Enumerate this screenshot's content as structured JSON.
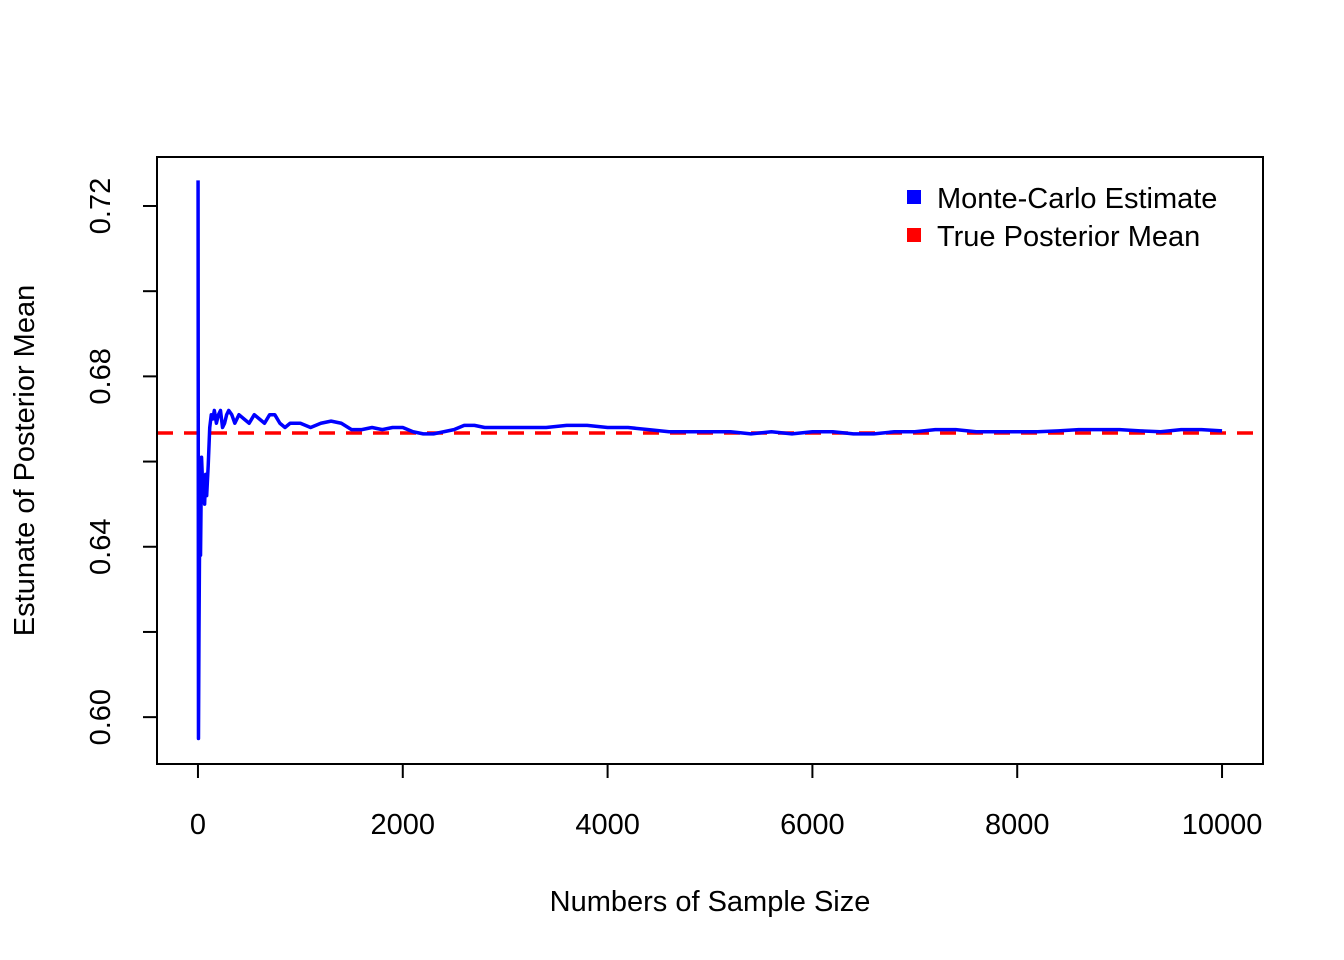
{
  "chart_data": {
    "type": "line",
    "title": "",
    "xlabel": "Numbers of Sample Size",
    "ylabel": "Estunate of Posterior Mean",
    "xlim": [
      -400,
      10400
    ],
    "ylim": [
      0.589,
      0.7315
    ],
    "xticks": [
      0,
      2000,
      4000,
      6000,
      8000,
      10000
    ],
    "xtick_labels": [
      "0",
      "2000",
      "4000",
      "6000",
      "8000",
      "10000"
    ],
    "yticks": [
      0.6,
      0.62,
      0.64,
      0.66,
      0.68,
      0.7,
      0.72
    ],
    "ytick_labels": [
      "0.60",
      "",
      "0.64",
      "",
      "0.68",
      "",
      "0.72"
    ],
    "grid": false,
    "legend_position": "top-right",
    "series": [
      {
        "name": "Monte-Carlo Estimate",
        "color": "#0000ff",
        "style": "solid",
        "x": [
          1,
          5,
          10,
          18,
          25,
          35,
          45,
          55,
          65,
          75,
          85,
          100,
          115,
          130,
          145,
          160,
          180,
          200,
          220,
          240,
          260,
          280,
          300,
          330,
          360,
          400,
          450,
          500,
          550,
          600,
          650,
          700,
          750,
          800,
          850,
          900,
          1000,
          1100,
          1200,
          1300,
          1400,
          1500,
          1600,
          1700,
          1800,
          1900,
          2000,
          2100,
          2200,
          2300,
          2400,
          2500,
          2600,
          2700,
          2800,
          2900,
          3000,
          3200,
          3400,
          3600,
          3800,
          4000,
          4200,
          4400,
          4600,
          4800,
          5000,
          5200,
          5400,
          5600,
          5800,
          6000,
          6200,
          6400,
          6600,
          6800,
          7000,
          7200,
          7400,
          7600,
          7800,
          8000,
          8200,
          8400,
          8600,
          8800,
          9000,
          9200,
          9400,
          9600,
          9800,
          10000
        ],
        "y": [
          0.726,
          0.595,
          0.62,
          0.65,
          0.638,
          0.661,
          0.655,
          0.652,
          0.65,
          0.657,
          0.652,
          0.659,
          0.668,
          0.671,
          0.67,
          0.672,
          0.669,
          0.671,
          0.672,
          0.668,
          0.669,
          0.671,
          0.672,
          0.671,
          0.669,
          0.671,
          0.67,
          0.669,
          0.671,
          0.67,
          0.669,
          0.671,
          0.671,
          0.669,
          0.668,
          0.669,
          0.669,
          0.668,
          0.669,
          0.6695,
          0.669,
          0.6675,
          0.6675,
          0.668,
          0.6675,
          0.668,
          0.668,
          0.667,
          0.6665,
          0.6665,
          0.667,
          0.6675,
          0.6685,
          0.6685,
          0.668,
          0.668,
          0.668,
          0.668,
          0.668,
          0.6685,
          0.6685,
          0.668,
          0.668,
          0.6675,
          0.667,
          0.667,
          0.667,
          0.667,
          0.6665,
          0.667,
          0.6665,
          0.667,
          0.667,
          0.6665,
          0.6665,
          0.667,
          0.667,
          0.6675,
          0.6675,
          0.667,
          0.667,
          0.667,
          0.667,
          0.6672,
          0.6675,
          0.6675,
          0.6675,
          0.6672,
          0.667,
          0.6675,
          0.6675,
          0.6672
        ]
      },
      {
        "name": "True Posterior Mean",
        "color": "#ff0000",
        "style": "dashed",
        "y_constant": 0.6667
      }
    ]
  }
}
